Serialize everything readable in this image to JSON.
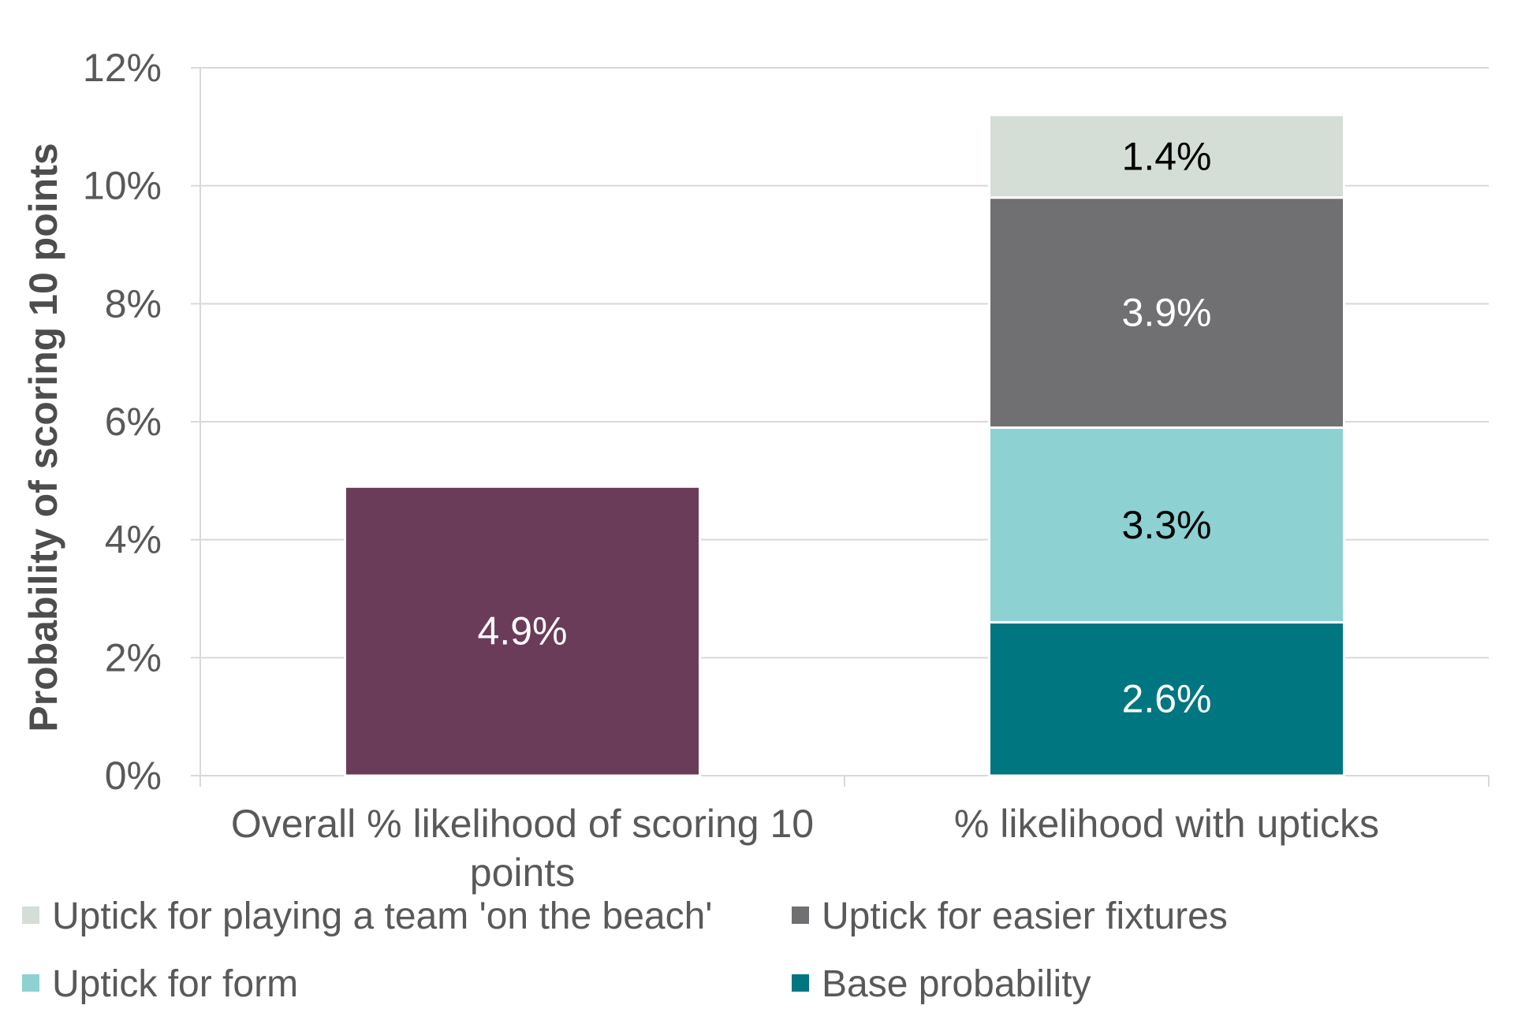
{
  "chart_data": {
    "type": "bar",
    "stacked": true,
    "title": "",
    "xlabel": "",
    "ylabel": "Probability of scoring 10 points",
    "ylim": [
      0,
      12
    ],
    "yticks": [
      "0%",
      "2%",
      "4%",
      "6%",
      "8%",
      "10%",
      "12%"
    ],
    "grid": true,
    "legend_position": "bottom",
    "categories": [
      [
        "Overall % likelihood of scoring 10",
        "points"
      ],
      [
        "% likelihood with upticks"
      ]
    ],
    "bars": [
      {
        "segments": [
          {
            "value": 4.9,
            "label": "4.9%",
            "color": "#6b3b5a",
            "label_color": "#ffffff"
          }
        ]
      },
      {
        "segments": [
          {
            "series": "Base probability",
            "value": 2.6,
            "label": "2.6%",
            "color": "#007681",
            "label_color": "#ffffff"
          },
          {
            "series": "Uptick for form",
            "value": 3.3,
            "label": "3.3%",
            "color": "#8dd1d2",
            "label_color": "#000000"
          },
          {
            "series": "Uptick for easier fixtures",
            "value": 3.9,
            "label": "3.9%",
            "color": "#707073",
            "label_color": "#ffffff"
          },
          {
            "series": "Uptick for playing a team 'on the beach'",
            "value": 1.4,
            "label": "1.4%",
            "color": "#d4ddd6",
            "label_color": "#000000"
          }
        ]
      }
    ],
    "legend": [
      {
        "name": "Uptick for playing a team 'on the beach'",
        "color": "#d4ddd6"
      },
      {
        "name": "Uptick for easier fixtures",
        "color": "#707073"
      },
      {
        "name": "Uptick for form",
        "color": "#8dd1d2"
      },
      {
        "name": "Base probability",
        "color": "#007681"
      }
    ]
  }
}
